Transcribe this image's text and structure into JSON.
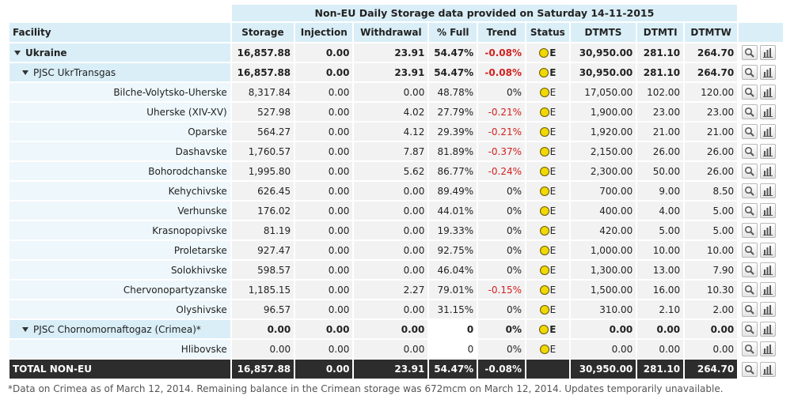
{
  "title": "Non-EU Daily Storage data provided on Saturday 14-11-2015",
  "columns": [
    "Facility",
    "Storage",
    "Injection",
    "Withdrawal",
    "% Full",
    "Trend",
    "Status",
    "DTMTS",
    "DTMTI",
    "DTMTW"
  ],
  "rows": [
    {
      "name": "Ukraine",
      "level": 1,
      "storage": "16,857.88",
      "injection": "0.00",
      "withdrawal": "23.91",
      "full": "54.47%",
      "trend": "-0.08%",
      "status": "E",
      "dtmts": "30,950.00",
      "dtmti": "281.10",
      "dtmtw": "264.70"
    },
    {
      "name": "PJSC UkrTransgas",
      "level": 2,
      "storage": "16,857.88",
      "injection": "0.00",
      "withdrawal": "23.91",
      "full": "54.47%",
      "trend": "-0.08%",
      "status": "E",
      "dtmts": "30,950.00",
      "dtmti": "281.10",
      "dtmtw": "264.70"
    },
    {
      "name": "Bilche-Volytsko-Uherske",
      "level": 0,
      "storage": "8,317.84",
      "injection": "0.00",
      "withdrawal": "0.00",
      "full": "48.78%",
      "trend": "0%",
      "status": "E",
      "dtmts": "17,050.00",
      "dtmti": "102.00",
      "dtmtw": "120.00"
    },
    {
      "name": "Uherske (XIV-XV)",
      "level": 0,
      "storage": "527.98",
      "injection": "0.00",
      "withdrawal": "4.02",
      "full": "27.79%",
      "trend": "-0.21%",
      "status": "E",
      "dtmts": "1,900.00",
      "dtmti": "23.00",
      "dtmtw": "23.00"
    },
    {
      "name": "Oparske",
      "level": 0,
      "storage": "564.27",
      "injection": "0.00",
      "withdrawal": "4.12",
      "full": "29.39%",
      "trend": "-0.21%",
      "status": "E",
      "dtmts": "1,920.00",
      "dtmti": "21.00",
      "dtmtw": "21.00"
    },
    {
      "name": "Dashavske",
      "level": 0,
      "storage": "1,760.57",
      "injection": "0.00",
      "withdrawal": "7.87",
      "full": "81.89%",
      "trend": "-0.37%",
      "status": "E",
      "dtmts": "2,150.00",
      "dtmti": "26.00",
      "dtmtw": "26.00"
    },
    {
      "name": "Bohorodchanske",
      "level": 0,
      "storage": "1,995.80",
      "injection": "0.00",
      "withdrawal": "5.62",
      "full": "86.77%",
      "trend": "-0.24%",
      "status": "E",
      "dtmts": "2,300.00",
      "dtmti": "50.00",
      "dtmtw": "26.00"
    },
    {
      "name": "Kehychivske",
      "level": 0,
      "storage": "626.45",
      "injection": "0.00",
      "withdrawal": "0.00",
      "full": "89.49%",
      "trend": "0%",
      "status": "E",
      "dtmts": "700.00",
      "dtmti": "9.00",
      "dtmtw": "8.50"
    },
    {
      "name": "Verhunske",
      "level": 0,
      "storage": "176.02",
      "injection": "0.00",
      "withdrawal": "0.00",
      "full": "44.01%",
      "trend": "0%",
      "status": "E",
      "dtmts": "400.00",
      "dtmti": "4.00",
      "dtmtw": "5.00"
    },
    {
      "name": "Krasnopopivske",
      "level": 0,
      "storage": "81.19",
      "injection": "0.00",
      "withdrawal": "0.00",
      "full": "19.33%",
      "trend": "0%",
      "status": "E",
      "dtmts": "420.00",
      "dtmti": "5.00",
      "dtmtw": "5.00"
    },
    {
      "name": "Proletarske",
      "level": 0,
      "storage": "927.47",
      "injection": "0.00",
      "withdrawal": "0.00",
      "full": "92.75%",
      "trend": "0%",
      "status": "E",
      "dtmts": "1,000.00",
      "dtmti": "10.00",
      "dtmtw": "10.00"
    },
    {
      "name": "Solokhivske",
      "level": 0,
      "storage": "598.57",
      "injection": "0.00",
      "withdrawal": "0.00",
      "full": "46.04%",
      "trend": "0%",
      "status": "E",
      "dtmts": "1,300.00",
      "dtmti": "13.00",
      "dtmtw": "7.90"
    },
    {
      "name": "Chervonopartyzanske",
      "level": 0,
      "storage": "1,185.15",
      "injection": "0.00",
      "withdrawal": "2.27",
      "full": "79.01%",
      "trend": "-0.15%",
      "status": "E",
      "dtmts": "1,500.00",
      "dtmti": "16.00",
      "dtmtw": "10.30"
    },
    {
      "name": "Olyshivske",
      "level": 0,
      "storage": "96.57",
      "injection": "0.00",
      "withdrawal": "0.00",
      "full": "31.15%",
      "trend": "0%",
      "status": "E",
      "dtmts": "310.00",
      "dtmti": "2.10",
      "dtmtw": "2.00"
    },
    {
      "name": "PJSC Chornomornaftogaz (Crimea)*",
      "level": 3,
      "storage": "0.00",
      "injection": "0.00",
      "withdrawal": "0.00",
      "full": "0",
      "trend": "0%",
      "status": "E",
      "dtmts": "0.00",
      "dtmti": "0.00",
      "dtmtw": "0.00"
    },
    {
      "name": "Hlibovske",
      "level": 0,
      "storage": "0.00",
      "injection": "0.00",
      "withdrawal": "0.00",
      "full": "0",
      "trend": "0%",
      "status": "E",
      "dtmts": "0.00",
      "dtmti": "0.00",
      "dtmtw": "0.00"
    }
  ],
  "total": {
    "name": "TOTAL NON-EU",
    "storage": "16,857.88",
    "injection": "0.00",
    "withdrawal": "23.91",
    "full": "54.47%",
    "trend": "-0.08%",
    "status": "",
    "dtmts": "30,950.00",
    "dtmti": "281.10",
    "dtmtw": "264.70"
  },
  "footnote": "*Data on Crimea as of March 12, 2014. Remaining balance in the Crimean storage was 672mcm on March 12, 2014. Updates temporarily unavailable.",
  "icons": {
    "view": "magnifier-icon",
    "chart": "bar-chart-icon"
  },
  "colors": {
    "header_bg": "#d9eef7",
    "negative": "#d21f1f",
    "total_bg": "#2d2d2d",
    "status_dot": "#f0d800"
  }
}
